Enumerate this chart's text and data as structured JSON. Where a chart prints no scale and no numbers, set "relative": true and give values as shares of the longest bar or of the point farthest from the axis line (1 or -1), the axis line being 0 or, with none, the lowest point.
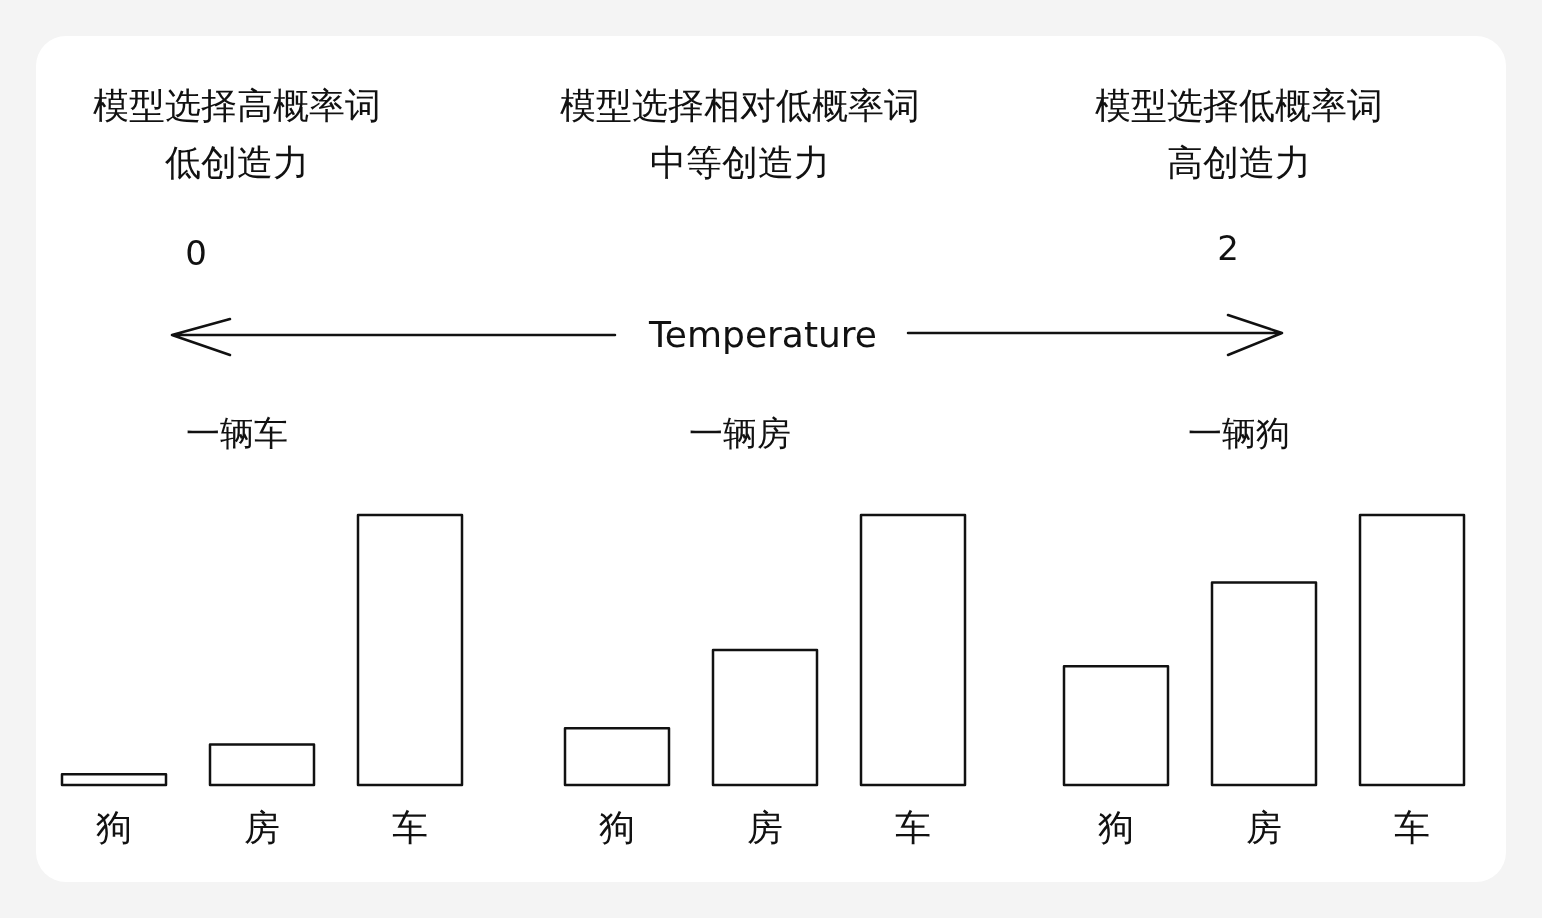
{
  "chart_data": [
    {
      "type": "bar",
      "title": "模型选择高概率词",
      "subtitle": "低创造力",
      "annotations": [
        "一辆车"
      ],
      "categories": [
        "狗",
        "房",
        "车"
      ],
      "values": [
        0.04,
        0.15,
        1
      ],
      "color": "#ffffff",
      "relative": true
    },
    {
      "type": "bar",
      "title": "模型选择相对低概率词",
      "subtitle": "中等创造力",
      "annotations": [
        "一辆房"
      ],
      "categories": [
        "狗",
        "房",
        "车"
      ],
      "values": [
        0.21,
        0.5,
        1
      ],
      "color": "#ffffff",
      "relative": true
    },
    {
      "type": "bar",
      "title": "模型选择低概率词",
      "subtitle": "高创造力",
      "annotations": [
        "一辆狗"
      ],
      "categories": [
        "狗",
        "房",
        "车"
      ],
      "values": [
        0.44,
        0.75,
        1
      ],
      "color": "#ffffff",
      "relative": true
    },
    {
      "type": "other",
      "annotations": [
        "0",
        "Temperature",
        "2"
      ]
    }
  ]
}
